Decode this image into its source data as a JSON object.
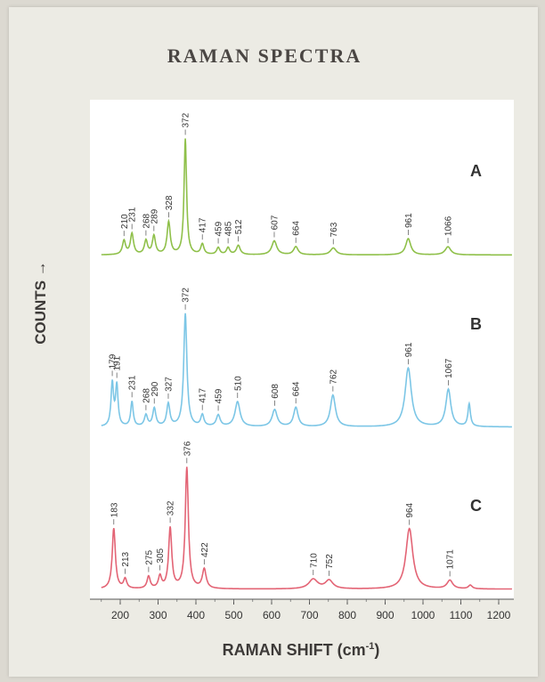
{
  "chart_data": {
    "type": "line",
    "title": "RAMAN SPECTRA",
    "ylabel": "COUNTS →",
    "xlabel": "RAMAN SHIFT (cm",
    "xlabel_sup": "-1",
    "xlabel_close": ")",
    "xlim": [
      120,
      1240
    ],
    "xticks": [
      "200",
      "300",
      "400",
      "500",
      "600",
      "700",
      "800",
      "900",
      "1000",
      "1100",
      "1200"
    ],
    "grid": false,
    "series": [
      {
        "name": "A",
        "color": "#8fc04a",
        "baseline": 0.05,
        "peaks": [
          {
            "x": 210,
            "h": 0.12,
            "w": 5,
            "label": "210"
          },
          {
            "x": 231,
            "h": 0.18,
            "w": 5,
            "label": "231"
          },
          {
            "x": 268,
            "h": 0.12,
            "w": 5,
            "label": "268"
          },
          {
            "x": 289,
            "h": 0.16,
            "w": 5,
            "label": "289"
          },
          {
            "x": 328,
            "h": 0.28,
            "w": 5,
            "label": "328"
          },
          {
            "x": 372,
            "h": 1.0,
            "w": 4,
            "label": "372"
          },
          {
            "x": 417,
            "h": 0.09,
            "w": 5,
            "label": "417"
          },
          {
            "x": 459,
            "h": 0.06,
            "w": 5,
            "label": "459"
          },
          {
            "x": 485,
            "h": 0.06,
            "w": 5,
            "label": "485"
          },
          {
            "x": 512,
            "h": 0.08,
            "w": 6,
            "label": "512"
          },
          {
            "x": 607,
            "h": 0.12,
            "w": 8,
            "label": "607"
          },
          {
            "x": 664,
            "h": 0.07,
            "w": 7,
            "label": "664"
          },
          {
            "x": 763,
            "h": 0.06,
            "w": 9,
            "label": "763"
          },
          {
            "x": 961,
            "h": 0.14,
            "w": 8,
            "label": "961"
          },
          {
            "x": 1066,
            "h": 0.07,
            "w": 9,
            "label": "1066"
          }
        ]
      },
      {
        "name": "B",
        "color": "#7cc6e6",
        "baseline": 0.03,
        "peaks": [
          {
            "x": 179,
            "h": 0.38,
            "w": 4,
            "label": "179"
          },
          {
            "x": 191,
            "h": 0.36,
            "w": 4,
            "label": "191"
          },
          {
            "x": 231,
            "h": 0.22,
            "w": 4,
            "label": "231"
          },
          {
            "x": 268,
            "h": 0.1,
            "w": 5,
            "label": "268"
          },
          {
            "x": 290,
            "h": 0.16,
            "w": 5,
            "label": "290"
          },
          {
            "x": 327,
            "h": 0.2,
            "w": 5,
            "label": "327"
          },
          {
            "x": 372,
            "h": 1.0,
            "w": 5,
            "label": "372"
          },
          {
            "x": 417,
            "h": 0.1,
            "w": 5,
            "label": "417"
          },
          {
            "x": 459,
            "h": 0.1,
            "w": 6,
            "label": "459"
          },
          {
            "x": 510,
            "h": 0.22,
            "w": 8,
            "label": "510"
          },
          {
            "x": 608,
            "h": 0.15,
            "w": 8,
            "label": "608"
          },
          {
            "x": 664,
            "h": 0.17,
            "w": 7,
            "label": "664"
          },
          {
            "x": 762,
            "h": 0.28,
            "w": 8,
            "label": "762"
          },
          {
            "x": 961,
            "h": 0.52,
            "w": 10,
            "label": "961"
          },
          {
            "x": 1067,
            "h": 0.33,
            "w": 8,
            "label": "1067"
          },
          {
            "x": 1122,
            "h": 0.2,
            "w": 4,
            "label": ""
          }
        ]
      },
      {
        "name": "C",
        "color": "#e36475",
        "baseline": 0.02,
        "peaks": [
          {
            "x": 183,
            "h": 0.5,
            "w": 5,
            "label": "183"
          },
          {
            "x": 213,
            "h": 0.08,
            "w": 5,
            "label": "213"
          },
          {
            "x": 275,
            "h": 0.1,
            "w": 5,
            "label": "275"
          },
          {
            "x": 305,
            "h": 0.1,
            "w": 5,
            "label": "305"
          },
          {
            "x": 332,
            "h": 0.5,
            "w": 5,
            "label": "332"
          },
          {
            "x": 376,
            "h": 1.0,
            "w": 5,
            "label": "376"
          },
          {
            "x": 422,
            "h": 0.16,
            "w": 6,
            "label": "422"
          },
          {
            "x": 710,
            "h": 0.08,
            "w": 14,
            "label": "710"
          },
          {
            "x": 752,
            "h": 0.07,
            "w": 12,
            "label": "752"
          },
          {
            "x": 964,
            "h": 0.5,
            "w": 11,
            "label": "964"
          },
          {
            "x": 1071,
            "h": 0.07,
            "w": 9,
            "label": "1071"
          },
          {
            "x": 1125,
            "h": 0.03,
            "w": 6,
            "label": ""
          }
        ]
      }
    ]
  }
}
